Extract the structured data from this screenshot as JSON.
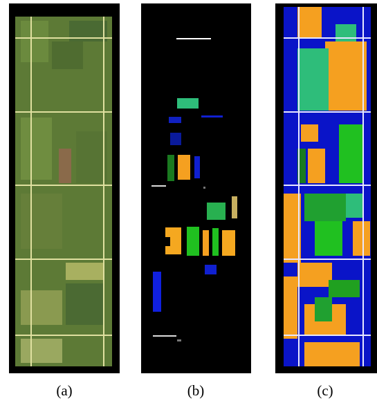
{
  "captions": [
    "(a)",
    "(b)",
    "(c)"
  ]
}
